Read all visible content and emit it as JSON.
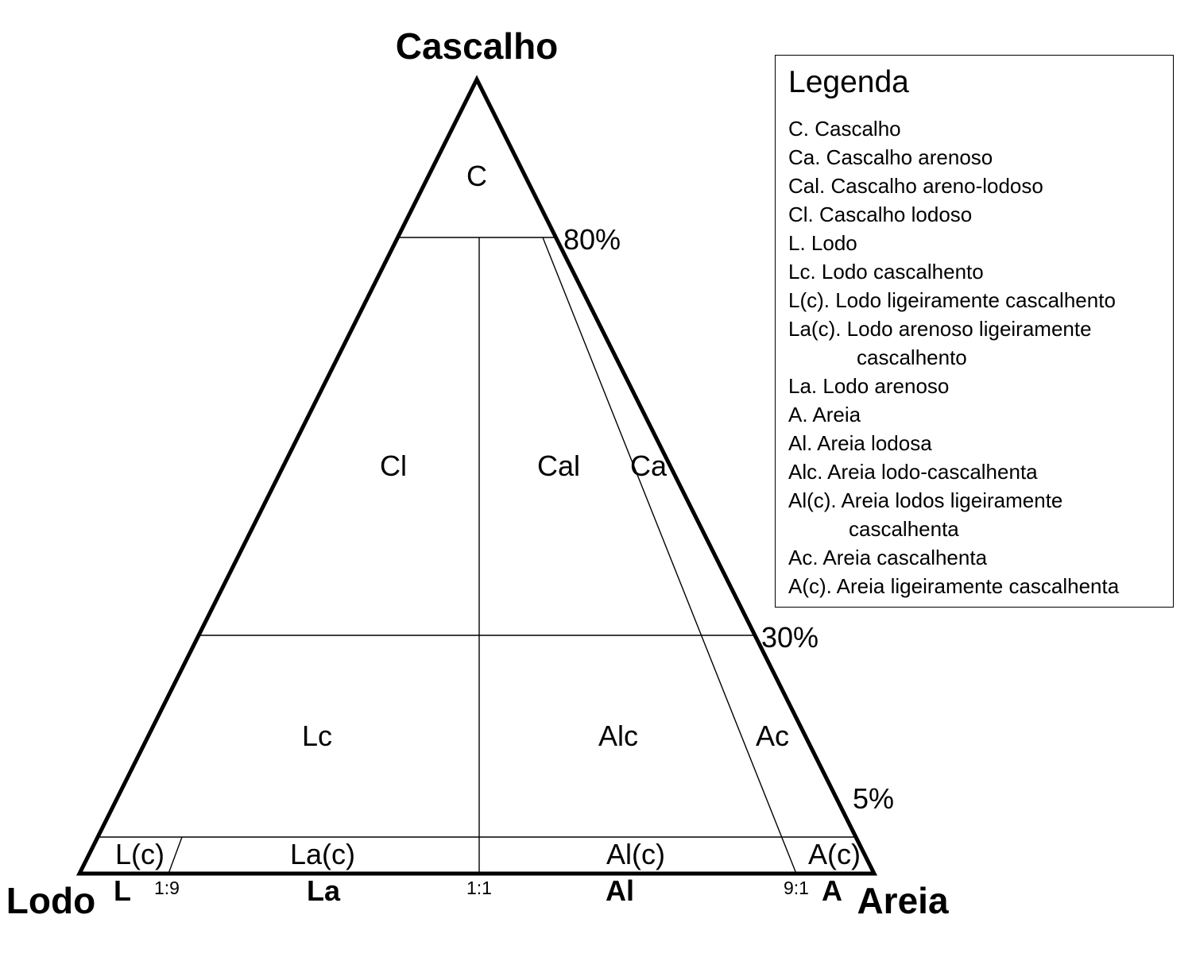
{
  "diagram": {
    "vertex_labels": {
      "top": "Cascalho",
      "left": "Lodo",
      "right": "Areia"
    },
    "gravel_levels": [
      "80%",
      "30%",
      "5%"
    ],
    "regions": {
      "C": "C",
      "Cl": "Cl",
      "Cal": "Cal",
      "Ca": "Ca",
      "Lc": "Lc",
      "Alc": "Alc",
      "Ac": "Ac",
      "Lc_slight": "L(c)",
      "Lac_slight": "La(c)",
      "Alc_slight": "Al(c)",
      "Ac_slight": "A(c)",
      "L": "L",
      "La": "La",
      "Al": "Al",
      "A": "A"
    },
    "ratios": [
      "1:9",
      "1:1",
      "9:1"
    ]
  },
  "legend": {
    "title": "Legenda",
    "items": [
      "C. Cascalho",
      "Ca. Cascalho arenoso",
      "Cal. Cascalho areno-lodoso",
      "Cl. Cascalho lodoso",
      "L. Lodo",
      "Lc. Lodo cascalhento",
      "L(c). Lodo ligeiramente cascalhento",
      "La(c). Lodo arenoso ligeiramente",
      "cascalhento",
      "La. Lodo arenoso",
      "A. Areia",
      "Al. Areia lodosa",
      "Alc. Areia lodo-cascalhenta",
      "Al(c). Areia lodos ligeiramente",
      "cascalhenta",
      "Ac. Areia cascalhenta",
      "A(c). Areia ligeiramente cascalhenta"
    ]
  }
}
